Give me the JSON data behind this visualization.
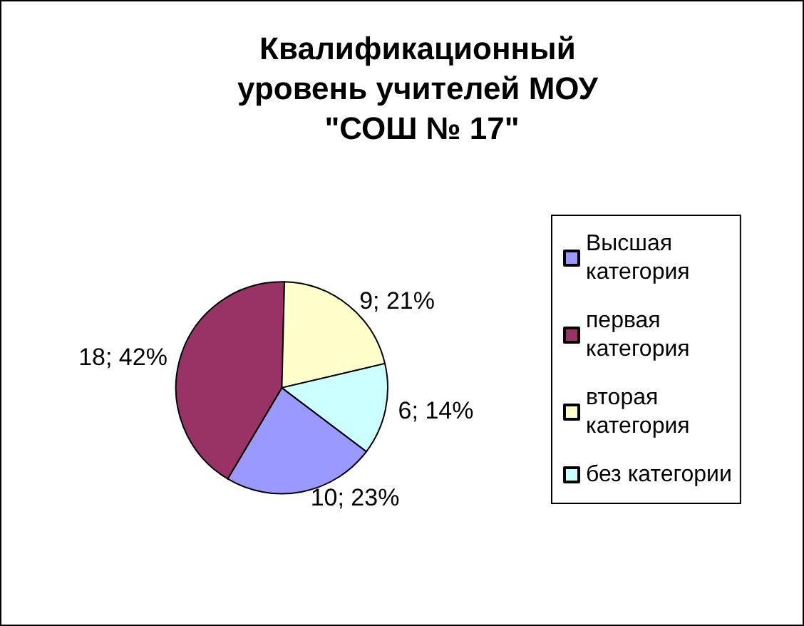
{
  "chart_data": {
    "type": "pie",
    "title": "Квалификационный уровень учителей МОУ \"СОШ № 17\"",
    "categories": [
      "Высшая категория",
      "первая категория",
      "вторая категория",
      "без категории"
    ],
    "values": [
      10,
      18,
      9,
      6
    ],
    "colors": [
      "#9999ff",
      "#993366",
      "#ffffcc",
      "#ccffff"
    ],
    "value_labels": [
      "10; 23%",
      "18; 42%",
      "9; 21%",
      "6; 14%"
    ],
    "legend": "right"
  }
}
